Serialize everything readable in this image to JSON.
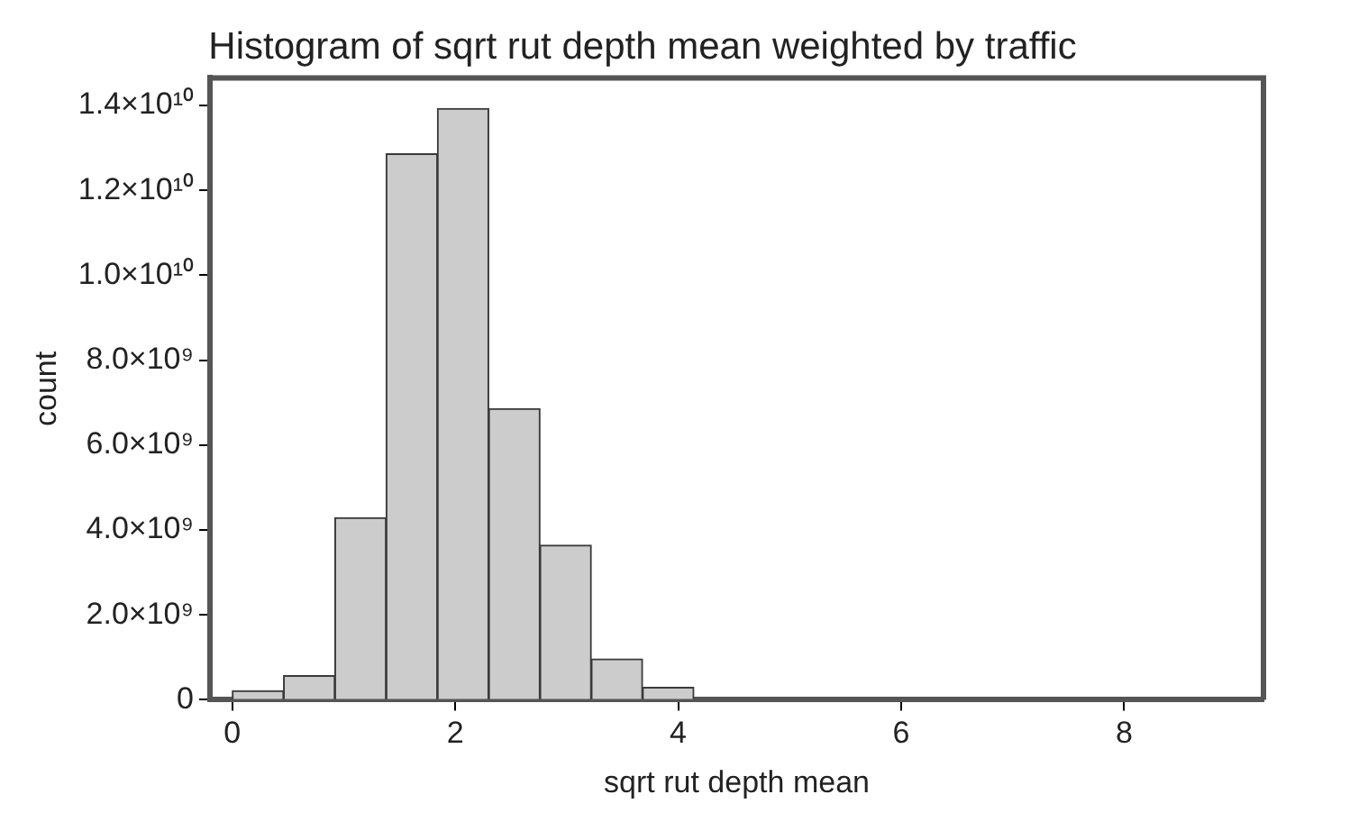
{
  "chart_data": {
    "type": "histogram",
    "title": "Histogram of sqrt rut depth mean weighted by traffic",
    "xlabel": "sqrt rut depth mean",
    "ylabel": "count",
    "bins": [
      0,
      0.46,
      0.92,
      1.38,
      1.84,
      2.3,
      2.76,
      3.22,
      3.68,
      4.14
    ],
    "values": [
      210000000.0,
      570000000.0,
      4290000000.0,
      12860000000.0,
      13930000000.0,
      6860000000.0,
      3640000000.0,
      960000000.0,
      290000000.0
    ],
    "color": "#cccccc",
    "xlim": [
      -0.2,
      9.25
    ],
    "xticks": [
      0,
      2,
      4,
      6,
      8
    ],
    "ylim": [
      0,
      14650000000.0
    ],
    "yticks": [
      0,
      {
        "value": 2000000000.0,
        "label": "2.0×10⁹"
      },
      {
        "value": 4000000000.0,
        "label": "4.0×10⁹"
      },
      {
        "value": 6000000000.0,
        "label": "6.0×10⁹"
      },
      {
        "value": 8000000000.0,
        "label": "8.0×10⁹"
      },
      {
        "value": 10000000000.0,
        "label": "1.0×10¹⁰"
      },
      {
        "value": 12000000000.0,
        "label": "1.2×10¹⁰"
      },
      {
        "value": 14000000000.0,
        "label": "1.4×10¹⁰"
      }
    ],
    "grid": false,
    "legend": false
  }
}
